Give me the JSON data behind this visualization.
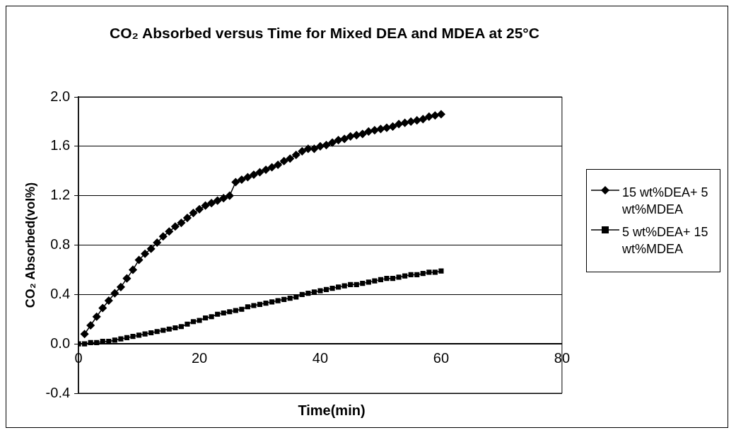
{
  "chart_data": {
    "type": "line",
    "title": "CO₂ Absorbed versus Time for Mixed DEA and MDEA at 25°C",
    "xlabel": "Time(min)",
    "ylabel": "CO₂ Absorbed(vol%)",
    "xlim": [
      0,
      80
    ],
    "xticks": [
      0,
      20,
      40,
      60,
      80
    ],
    "ylim": [
      -0.4,
      2.0
    ],
    "yticks": [
      {
        "value": -0.4,
        "label": "-0.4"
      },
      {
        "value": 0,
        "label": "0.0"
      },
      {
        "value": 0.4,
        "label": "0.4"
      },
      {
        "value": 0.8,
        "label": "0.8"
      },
      {
        "value": 1.2,
        "label": "1.2"
      },
      {
        "value": 1.6,
        "label": "1.6"
      },
      {
        "value": 2,
        "label": "2.0"
      }
    ],
    "grid": "y",
    "legend": "right",
    "series": [
      {
        "name": "15 wt%DEA+ 5 wt%MDEA",
        "color": "#000000",
        "marker": "diamond",
        "x": [
          1,
          2,
          3,
          4,
          5,
          6,
          7,
          8,
          9,
          10,
          11,
          12,
          13,
          14,
          15,
          16,
          17,
          18,
          19,
          20,
          21,
          22,
          23,
          24,
          25,
          26,
          27,
          28,
          29,
          30,
          31,
          32,
          33,
          34,
          35,
          36,
          37,
          38,
          39,
          40,
          41,
          42,
          43,
          44,
          45,
          46,
          47,
          48,
          49,
          50,
          51,
          52,
          53,
          54,
          55,
          56,
          57,
          58,
          59,
          60
        ],
        "values": [
          0.08,
          0.15,
          0.22,
          0.29,
          0.35,
          0.41,
          0.46,
          0.53,
          0.6,
          0.68,
          0.73,
          0.77,
          0.82,
          0.87,
          0.91,
          0.95,
          0.98,
          1.02,
          1.06,
          1.09,
          1.12,
          1.14,
          1.16,
          1.18,
          1.2,
          1.31,
          1.33,
          1.35,
          1.37,
          1.39,
          1.41,
          1.43,
          1.45,
          1.48,
          1.5,
          1.53,
          1.56,
          1.58,
          1.58,
          1.6,
          1.61,
          1.63,
          1.65,
          1.66,
          1.68,
          1.69,
          1.7,
          1.72,
          1.73,
          1.74,
          1.75,
          1.76,
          1.78,
          1.79,
          1.8,
          1.81,
          1.82,
          1.84,
          1.85,
          1.86
        ]
      },
      {
        "name": "5 wt%DEA+ 15 wt%MDEA",
        "color": "#000000",
        "marker": "square",
        "x": [
          0,
          1,
          2,
          3,
          4,
          5,
          6,
          7,
          8,
          9,
          10,
          11,
          12,
          13,
          14,
          15,
          16,
          17,
          18,
          19,
          20,
          21,
          22,
          23,
          24,
          25,
          26,
          27,
          28,
          29,
          30,
          31,
          32,
          33,
          34,
          35,
          36,
          37,
          38,
          39,
          40,
          41,
          42,
          43,
          44,
          45,
          46,
          47,
          48,
          49,
          50,
          51,
          52,
          53,
          54,
          55,
          56,
          57,
          58,
          59,
          60
        ],
        "values": [
          0,
          0,
          0.01,
          0.01,
          0.02,
          0.02,
          0.03,
          0.04,
          0.05,
          0.06,
          0.07,
          0.08,
          0.09,
          0.1,
          0.11,
          0.12,
          0.13,
          0.14,
          0.16,
          0.18,
          0.19,
          0.21,
          0.22,
          0.24,
          0.25,
          0.26,
          0.27,
          0.28,
          0.3,
          0.31,
          0.32,
          0.33,
          0.34,
          0.35,
          0.36,
          0.37,
          0.38,
          0.4,
          0.41,
          0.42,
          0.43,
          0.44,
          0.45,
          0.46,
          0.47,
          0.48,
          0.48,
          0.49,
          0.5,
          0.51,
          0.52,
          0.53,
          0.53,
          0.54,
          0.55,
          0.56,
          0.56,
          0.57,
          0.58,
          0.58,
          0.59
        ]
      }
    ]
  }
}
